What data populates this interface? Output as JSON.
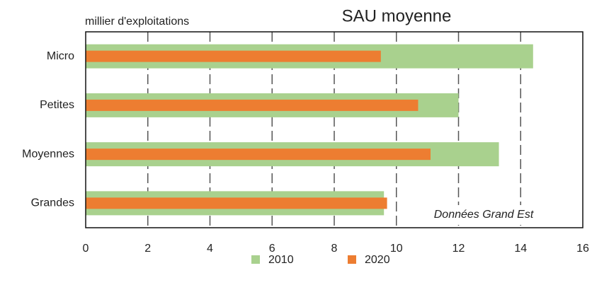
{
  "chart_data": {
    "type": "hbar",
    "title": "SAU moyenne",
    "y_axis_label": "millier d'exploitations",
    "annotation": "Données Grand Est",
    "categories": [
      "Micro",
      "Petites",
      "Moyennes",
      "Grandes"
    ],
    "series": [
      {
        "name": "2010",
        "color": "#a9d18e",
        "values": [
          14.4,
          12.0,
          13.3,
          9.6
        ]
      },
      {
        "name": "2020",
        "color": "#ed7d31",
        "values": [
          9.5,
          10.7,
          11.1,
          9.7
        ]
      }
    ],
    "xlim": [
      0,
      16
    ],
    "xticks": [
      0,
      2,
      4,
      6,
      8,
      10,
      12,
      14,
      16
    ],
    "grid": true,
    "legend": "bottom"
  }
}
